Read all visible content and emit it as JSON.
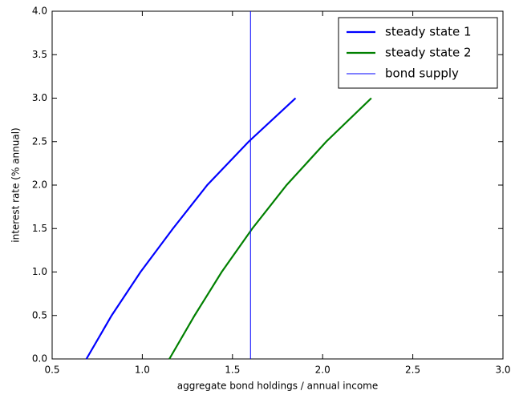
{
  "chart_data": {
    "type": "line",
    "xlabel": "aggregate bond holdings / annual income",
    "ylabel": "interest rate (% annual)",
    "series": [
      {
        "name": "steady state 1",
        "color": "#0000ff",
        "linewidth": 2.2,
        "x": [
          0.69,
          0.83,
          0.99,
          1.17,
          1.36,
          1.59,
          1.85
        ],
        "values": [
          0,
          0.5,
          1.0,
          1.5,
          2.0,
          2.5,
          3.0
        ]
      },
      {
        "name": "steady state 2",
        "color": "#008000",
        "linewidth": 2.2,
        "x": [
          1.15,
          1.29,
          1.44,
          1.61,
          1.8,
          2.02,
          2.27
        ],
        "values": [
          0,
          0.5,
          1.0,
          1.5,
          2.0,
          2.5,
          3.0
        ]
      },
      {
        "name": "bond supply",
        "color": "#0000ff",
        "linewidth": 1,
        "x": [
          1.6,
          1.6
        ],
        "values": [
          0,
          4.0
        ]
      }
    ],
    "xlim": [
      0.5,
      3.0
    ],
    "ylim": [
      0,
      4.0
    ],
    "xticks": [
      0.5,
      {
        "value": 1,
        "label": "1.0"
      },
      1.5,
      {
        "value": 2,
        "label": "2.0"
      },
      2.5,
      {
        "value": 3,
        "label": "3.0"
      }
    ],
    "yticks": [
      {
        "value": 0,
        "label": "0.0"
      },
      0.5,
      {
        "value": 1,
        "label": "1.0"
      },
      1.5,
      {
        "value": 2,
        "label": "2.0"
      },
      2.5,
      {
        "value": 3,
        "label": "3.0"
      },
      3.5,
      {
        "value": 4,
        "label": "4.0"
      }
    ],
    "grid": false,
    "legend": "upper right"
  }
}
